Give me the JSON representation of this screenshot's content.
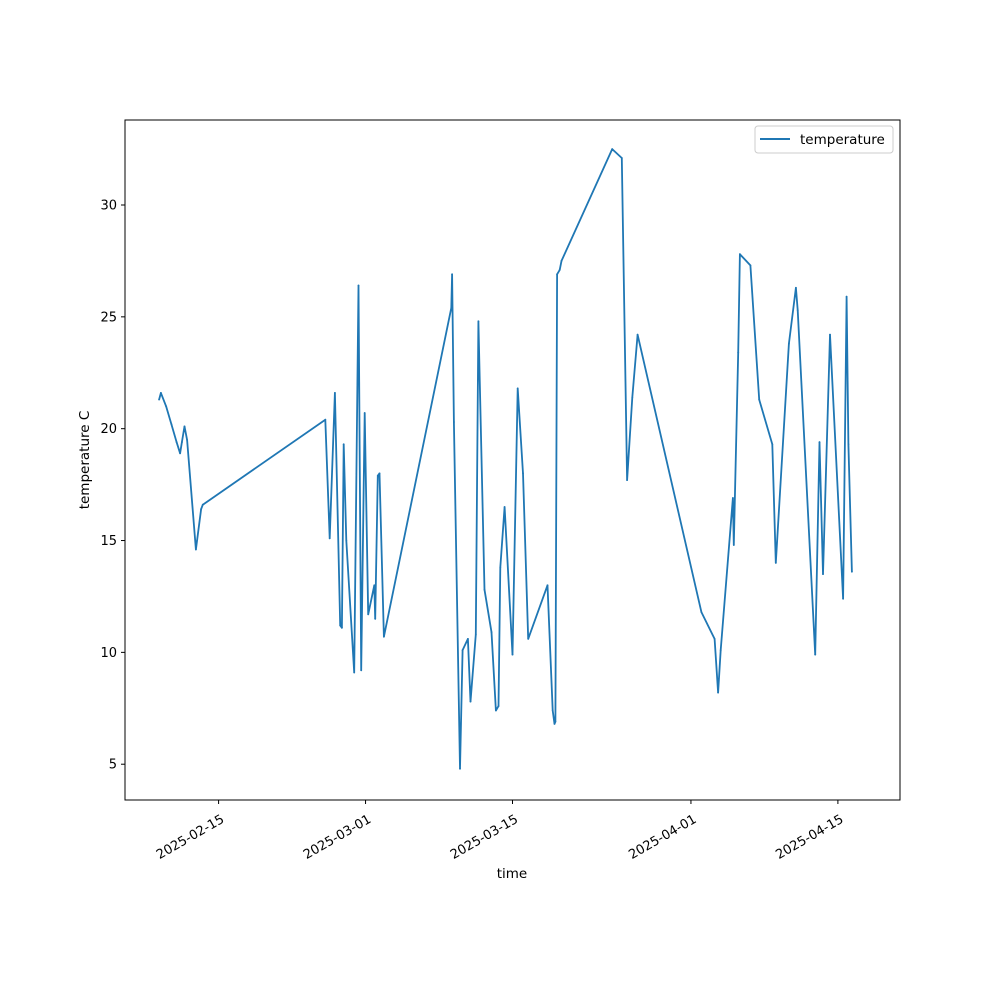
{
  "chart_data": {
    "type": "line",
    "title": "",
    "xlabel": "time",
    "ylabel": "temperature C",
    "xlim": [
      "2025-02-06T02:00",
      "2025-04-20T22:00"
    ],
    "ylim": [
      3.4,
      33.8
    ],
    "y_ticks": [
      5,
      10,
      15,
      20,
      25,
      30
    ],
    "x_ticks": [
      "2025-02-15",
      "2025-03-01",
      "2025-03-15",
      "2025-04-01",
      "2025-04-15"
    ],
    "grid": false,
    "legend": {
      "position": "top-right"
    },
    "series": [
      {
        "name": "temperature",
        "color": "#1f77b4",
        "x": [
          "2025-02-09T08:00",
          "2025-02-09T12:00",
          "2025-02-10T00:00",
          "2025-02-10T12:00",
          "2025-02-11T00:00",
          "2025-02-11T08:00",
          "2025-02-11T12:00",
          "2025-02-11T18:00",
          "2025-02-12T00:00",
          "2025-02-12T20:00",
          "2025-02-13T08:00",
          "2025-02-13T12:00",
          "2025-02-25T04:00",
          "2025-02-25T14:00",
          "2025-02-26T02:00",
          "2025-02-26T14:00",
          "2025-02-26T18:00",
          "2025-02-26T22:00",
          "2025-02-27T04:00",
          "2025-02-27T22:00",
          "2025-02-28T08:00",
          "2025-02-28T14:00",
          "2025-02-28T22:00",
          "2025-03-01T06:00",
          "2025-03-01T20:00",
          "2025-03-01T22:00",
          "2025-03-02T04:00",
          "2025-03-02T08:00",
          "2025-03-02T18:00",
          "2025-03-09T04:00",
          "2025-03-09T06:00",
          "2025-03-09T10:00",
          "2025-03-10T00:00",
          "2025-03-10T06:00",
          "2025-03-10T18:00",
          "2025-03-11T00:00",
          "2025-03-11T12:00",
          "2025-03-11T18:00",
          "2025-03-12T08:00",
          "2025-03-13T00:00",
          "2025-03-13T10:00",
          "2025-03-13T16:00",
          "2025-03-13T20:00",
          "2025-03-14T06:00",
          "2025-03-15T00:00",
          "2025-03-15T12:00",
          "2025-03-16T00:00",
          "2025-03-16T12:00",
          "2025-03-18T08:00",
          "2025-03-18T20:00",
          "2025-03-19T00:00",
          "2025-03-19T02:00",
          "2025-03-19T06:00",
          "2025-03-19T12:00",
          "2025-03-19T16:00",
          "2025-03-24T12:00",
          "2025-03-25T10:00",
          "2025-03-25T22:00",
          "2025-03-26T10:00",
          "2025-03-26T22:00",
          "2025-04-02T00:00",
          "2025-04-03T06:00",
          "2025-04-03T14:00",
          "2025-04-03T20:00",
          "2025-04-05T00:00",
          "2025-04-05T02:00",
          "2025-04-05T12:00",
          "2025-04-05T16:00",
          "2025-04-06T16:00",
          "2025-04-07T12:00",
          "2025-04-08T18:00",
          "2025-04-09T02:00",
          "2025-04-10T08:00",
          "2025-04-11T00:00",
          "2025-04-11T04:00",
          "2025-04-12T20:00",
          "2025-04-13T06:00",
          "2025-04-13T14:00",
          "2025-04-14T06:00",
          "2025-04-15T12:00",
          "2025-04-15T20:00",
          "2025-04-16T00:00",
          "2025-04-16T08:00"
        ],
        "y": [
          21.3,
          21.6,
          21.0,
          20.2,
          19.4,
          18.9,
          19.4,
          20.1,
          19.5,
          14.6,
          16.4,
          16.6,
          20.4,
          15.1,
          21.6,
          11.2,
          11.1,
          19.3,
          15.0,
          9.1,
          26.4,
          9.2,
          20.7,
          11.7,
          13.0,
          11.5,
          17.9,
          18.0,
          10.7,
          25.4,
          26.9,
          20.3,
          4.8,
          10.1,
          10.6,
          7.8,
          10.8,
          24.8,
          12.8,
          10.9,
          7.4,
          7.6,
          13.8,
          16.5,
          9.9,
          21.8,
          18.0,
          10.6,
          13.0,
          7.4,
          6.8,
          6.9,
          26.9,
          27.1,
          27.5,
          32.5,
          32.1,
          17.7,
          21.4,
          24.2,
          11.8,
          10.6,
          8.2,
          10.1,
          16.9,
          14.8,
          23.4,
          27.8,
          27.3,
          21.3,
          19.3,
          14.0,
          23.8,
          26.3,
          25.3,
          9.9,
          19.4,
          13.5,
          24.2,
          12.4,
          25.9,
          19.3,
          13.6
        ]
      }
    ]
  }
}
